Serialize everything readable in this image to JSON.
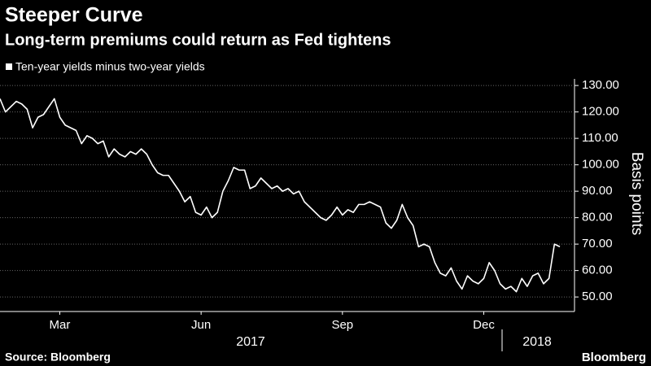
{
  "chart_data": {
    "type": "line",
    "title": "Steeper Curve",
    "subtitle": "Long-term premiums could return as Fed tightens",
    "y_label": "Basis points",
    "source": "Source: Bloomberg",
    "brand": "Bloomberg",
    "x_groups": [
      "2017",
      "2018"
    ],
    "categories": [
      null,
      null,
      null,
      null,
      null,
      null,
      null,
      null,
      null,
      null,
      null,
      "Mar",
      null,
      null,
      null,
      null,
      null,
      null,
      null,
      null,
      null,
      null,
      null,
      null,
      null,
      null,
      null,
      null,
      null,
      null,
      null,
      null,
      null,
      null,
      null,
      null,
      null,
      "Jun",
      null,
      null,
      null,
      null,
      null,
      null,
      null,
      null,
      null,
      null,
      null,
      null,
      null,
      null,
      null,
      null,
      null,
      null,
      null,
      null,
      null,
      null,
      null,
      null,
      null,
      "Sep",
      null,
      null,
      null,
      null,
      null,
      null,
      null,
      null,
      null,
      null,
      null,
      null,
      null,
      null,
      null,
      null,
      null,
      null,
      null,
      null,
      null,
      null,
      null,
      null,
      null,
      "Dec",
      null,
      null,
      null,
      null,
      null,
      null,
      null,
      null,
      null,
      null,
      null,
      null,
      null,
      null
    ],
    "series": [
      {
        "name": "Ten-year yields minus two-year yields",
        "color": "#ffffff",
        "values": [
          125,
          120,
          122,
          124,
          123,
          121,
          114,
          118,
          119,
          122,
          125,
          118,
          115,
          114,
          113,
          108,
          111,
          110,
          108,
          109,
          103,
          106,
          104,
          103,
          105,
          104,
          106,
          104,
          100,
          97,
          96,
          96,
          93,
          90,
          86,
          88,
          82,
          81,
          84,
          80,
          82,
          90,
          94,
          99,
          98,
          98,
          91,
          92,
          95,
          93,
          91,
          92,
          90,
          91,
          89,
          90,
          86,
          84,
          82,
          80,
          79,
          81,
          84,
          81,
          83,
          82,
          85,
          85,
          86,
          85,
          84,
          78,
          76,
          79,
          85,
          80,
          77,
          69,
          70,
          69,
          63,
          59,
          58,
          61,
          56,
          53,
          58,
          56,
          55,
          57,
          63,
          60,
          55,
          53,
          54,
          52,
          57,
          54,
          58,
          59,
          55,
          57,
          70,
          69
        ]
      }
    ],
    "ylim": [
      44.5,
      132.5
    ],
    "yticks": [
      {
        "value": 50,
        "label": "50.00"
      },
      {
        "value": 60,
        "label": "60.00"
      },
      {
        "value": 70,
        "label": "70.00"
      },
      {
        "value": 80,
        "label": "80.00"
      },
      {
        "value": 90,
        "label": "90.00"
      },
      {
        "value": 100,
        "label": "100.00"
      },
      {
        "value": 110,
        "label": "110.00"
      },
      {
        "value": 120,
        "label": "120.00"
      },
      {
        "value": 130,
        "label": "130.00"
      }
    ],
    "grid": true
  }
}
